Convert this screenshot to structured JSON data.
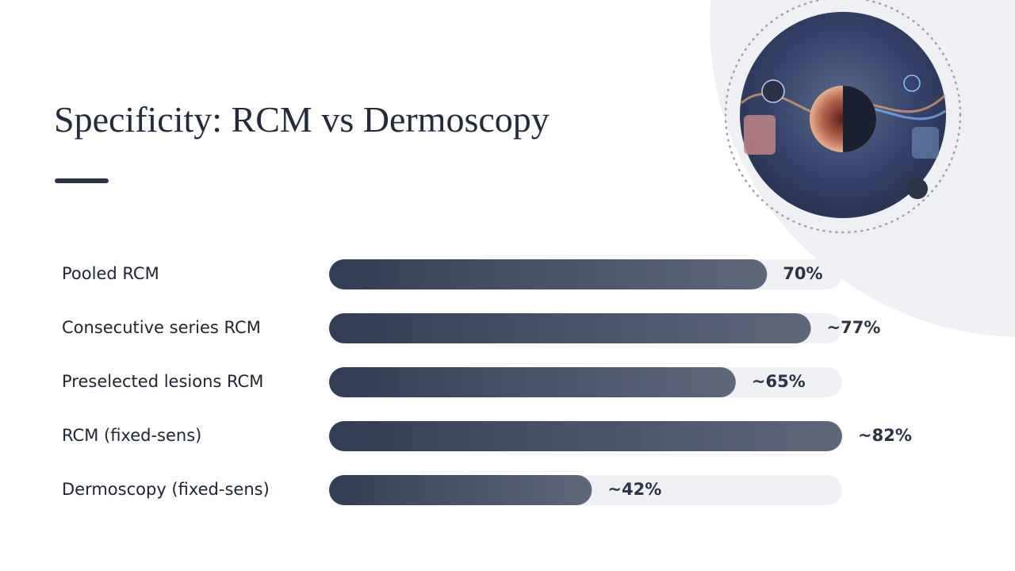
{
  "chart_data": {
    "type": "bar",
    "orientation": "horizontal",
    "title": "Specificity: RCM vs Dermoscopy",
    "categories": [
      "Pooled RCM",
      "Consecutive series RCM",
      "Preselected lesions RCM",
      "RCM (fixed-sens)",
      "Dermoscopy (fixed-sens)"
    ],
    "values": [
      70,
      77,
      65,
      82,
      42
    ],
    "value_labels": [
      "70%",
      "~77%",
      "~65%",
      "~82%",
      "~42%"
    ],
    "color": "#323d55",
    "xlim": [
      0,
      82
    ]
  }
}
